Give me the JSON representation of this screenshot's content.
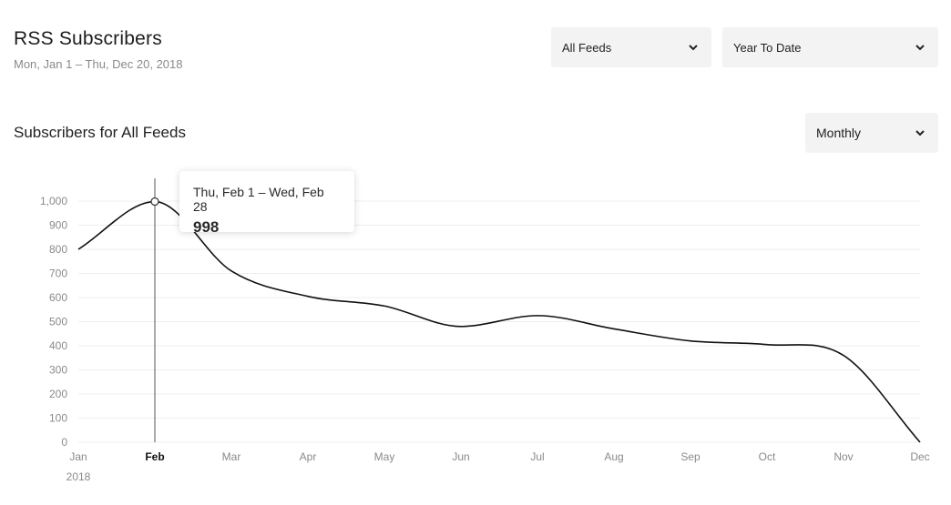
{
  "header": {
    "title": "RSS Subscribers",
    "date_range": "Mon, Jan 1 – Thu, Dec 20, 2018"
  },
  "filters": {
    "feed": "All Feeds",
    "period": "Year To Date",
    "interval": "Monthly"
  },
  "section_title": "Subscribers for All Feeds",
  "tooltip": {
    "range": "Thu, Feb 1 – Wed, Feb 28",
    "value": "998"
  },
  "colors": {
    "line": "#111111",
    "grid": "#efefef",
    "tick": "#8a8a8a",
    "select_bg": "#f3f3f3"
  },
  "chart_data": {
    "type": "line",
    "categories": [
      "Jan",
      "Feb",
      "Mar",
      "Apr",
      "May",
      "Jun",
      "Jul",
      "Aug",
      "Sep",
      "Oct",
      "Nov",
      "Dec"
    ],
    "year_label": "2018",
    "highlighted": "Feb",
    "series": [
      {
        "values": [
          800,
          998,
          710,
          605,
          565,
          480,
          525,
          470,
          420,
          405,
          360,
          0
        ]
      }
    ],
    "ylim": [
      0,
      1000
    ],
    "yticks": [
      0,
      100,
      200,
      300,
      400,
      500,
      600,
      700,
      800,
      900,
      1000
    ],
    "ytick_labels": [
      "0",
      "100",
      "200",
      "300",
      "400",
      "500",
      "600",
      "700",
      "800",
      "900",
      "1,000"
    ],
    "grid": true
  }
}
